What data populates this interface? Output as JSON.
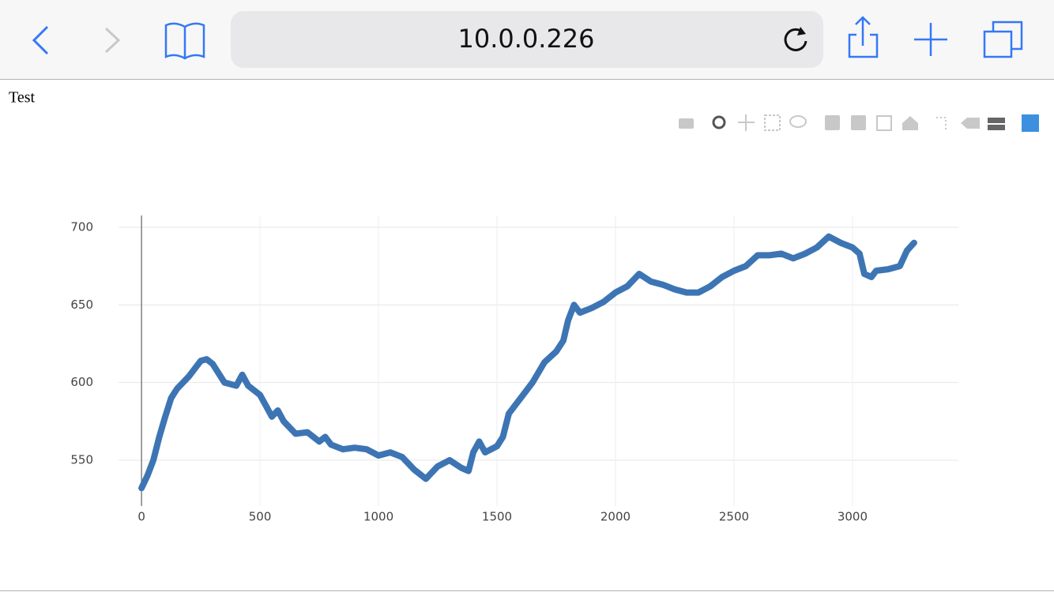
{
  "browser": {
    "url": "10.0.0.226"
  },
  "page": {
    "heading": "Test"
  },
  "chart_data": {
    "type": "line",
    "x": [
      0,
      25,
      50,
      75,
      100,
      125,
      150,
      200,
      250,
      275,
      300,
      350,
      400,
      425,
      450,
      500,
      525,
      550,
      575,
      600,
      650,
      700,
      750,
      775,
      800,
      850,
      900,
      950,
      1000,
      1050,
      1100,
      1150,
      1200,
      1250,
      1300,
      1350,
      1380,
      1400,
      1425,
      1450,
      1500,
      1525,
      1550,
      1600,
      1650,
      1700,
      1750,
      1780,
      1800,
      1825,
      1850,
      1900,
      1950,
      2000,
      2050,
      2100,
      2150,
      2200,
      2250,
      2300,
      2350,
      2400,
      2450,
      2500,
      2550,
      2600,
      2650,
      2700,
      2750,
      2800,
      2850,
      2900,
      2950,
      3000,
      3030,
      3050,
      3080,
      3100,
      3150,
      3200,
      3230,
      3260
    ],
    "series": [
      {
        "color": "#3d75b4",
        "values": [
          532,
          540,
          550,
          565,
          578,
          590,
          596,
          604,
          614,
          615,
          612,
          600,
          598,
          605,
          598,
          592,
          585,
          578,
          582,
          575,
          567,
          568,
          562,
          565,
          560,
          557,
          558,
          557,
          553,
          555,
          552,
          544,
          538,
          546,
          550,
          545,
          543,
          555,
          562,
          555,
          559,
          565,
          580,
          590,
          600,
          613,
          620,
          627,
          640,
          650,
          645,
          648,
          652,
          658,
          662,
          670,
          665,
          663,
          660,
          658,
          658,
          662,
          668,
          672,
          675,
          682,
          682,
          683,
          680,
          683,
          687,
          694,
          690,
          687,
          683,
          670,
          668,
          672,
          673,
          675,
          685,
          690
        ]
      }
    ],
    "xlim": [
      -97,
      3447
    ],
    "ylim": [
      520.5,
      707.6
    ],
    "xticks": [
      0,
      500,
      1000,
      1500,
      2000,
      2500,
      3000
    ],
    "yticks": [
      550,
      600,
      650,
      700
    ],
    "grid": true,
    "zeroline": true
  }
}
